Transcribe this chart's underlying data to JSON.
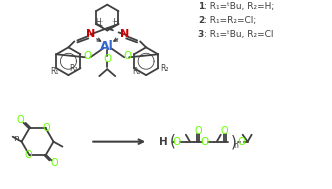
{
  "bg_color": "#ffffff",
  "dark_gray": "#404040",
  "green": "#66ff00",
  "red": "#cc0000",
  "blue": "#3366cc",
  "legend_lines": [
    "1: R₁=ᵗBu, R₂=H;",
    "2: R₁=R₂=Cl;",
    "3: R₁=ᵗBu, R₂=Cl"
  ]
}
